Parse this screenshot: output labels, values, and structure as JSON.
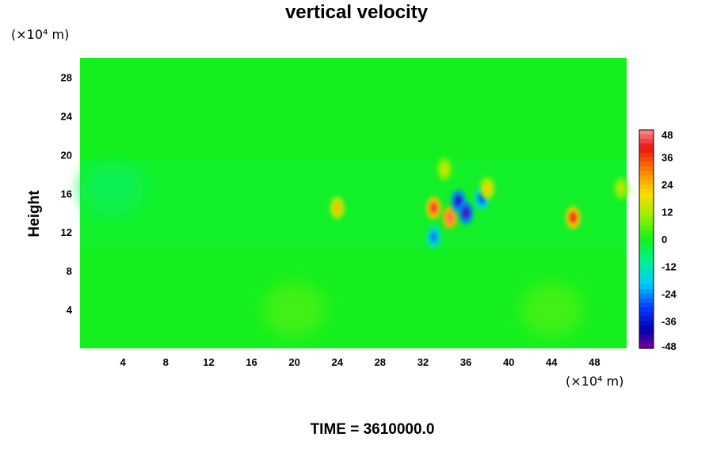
{
  "chart_data": {
    "type": "heatmap",
    "title": "vertical velocity",
    "ylabel": "Height",
    "xlabel": "",
    "x_unit_label": "(×10⁴ m)",
    "y_unit_label": "(×10⁴ m)",
    "xlim": [
      0,
      51
    ],
    "ylim": [
      0,
      30
    ],
    "x_ticks": [
      "4",
      "8",
      "12",
      "16",
      "20",
      "24",
      "28",
      "32",
      "36",
      "40",
      "44",
      "48"
    ],
    "y_ticks": [
      "4",
      "8",
      "12",
      "16",
      "20",
      "24",
      "28"
    ],
    "colorbar": {
      "range": [
        -48,
        48
      ],
      "ticks": [
        "48",
        "36",
        "24",
        "12",
        "0",
        "-12",
        "-24",
        "-36",
        "-48"
      ]
    },
    "background_value": 0,
    "features": [
      {
        "x": 33.0,
        "y": 14.5,
        "value": 42
      },
      {
        "x": 34.5,
        "y": 13.5,
        "value": 46
      },
      {
        "x": 35.3,
        "y": 15.2,
        "value": -44
      },
      {
        "x": 36.0,
        "y": 14.0,
        "value": -46
      },
      {
        "x": 37.5,
        "y": 15.5,
        "value": -30
      },
      {
        "x": 46.0,
        "y": 13.5,
        "value": 40
      },
      {
        "x": 24.0,
        "y": 14.5,
        "value": 24
      },
      {
        "x": 33.0,
        "y": 11.5,
        "value": -26
      },
      {
        "x": 38.0,
        "y": 16.5,
        "value": 22
      },
      {
        "x": 34.0,
        "y": 18.5,
        "value": 16
      },
      {
        "x": 3.0,
        "y": 16.5,
        "value": -8
      },
      {
        "x": 20.0,
        "y": 4.0,
        "value": 6
      },
      {
        "x": 44.0,
        "y": 4.0,
        "value": 6
      },
      {
        "x": 50.5,
        "y": 16.5,
        "value": 14
      }
    ]
  },
  "time_label": "TIME = 3610000.0"
}
